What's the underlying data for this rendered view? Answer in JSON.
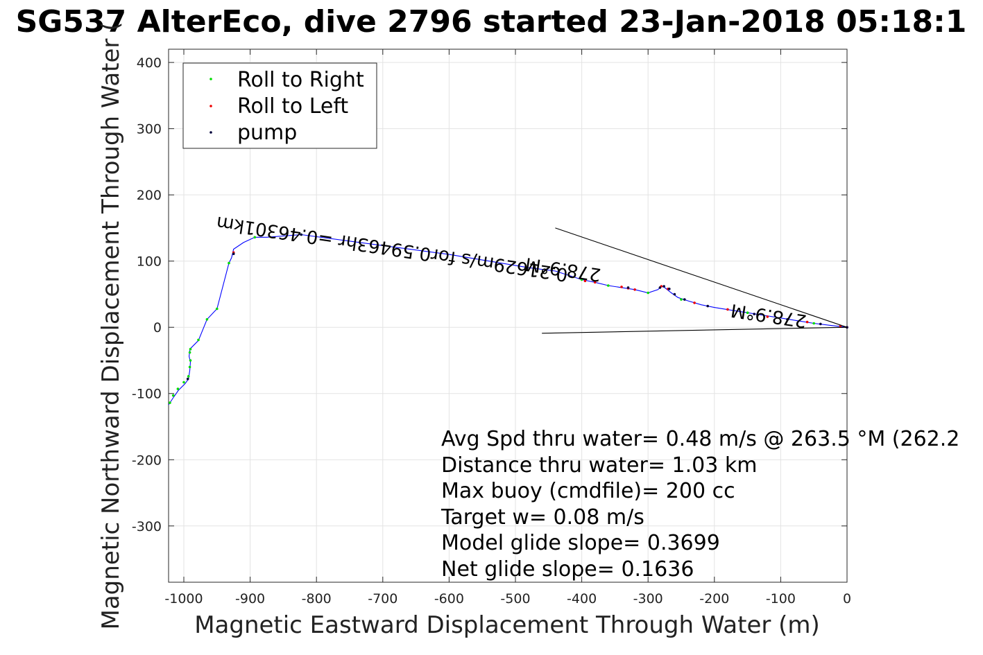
{
  "chart_data": {
    "type": "scatter",
    "title": "SG537 AlterEco, dive 2796 started 23-Jan-2018 05:18:1",
    "xlabel": "Magnetic Eastward Displacement Through Water (m)",
    "ylabel": "Magnetic Northward Displacement Through Water (",
    "xlim": [
      -1023,
      0
    ],
    "ylim": [
      -385,
      420
    ],
    "grid": true,
    "legend_position": "top-left",
    "x_ticks": [
      -1000,
      -900,
      -800,
      -700,
      -600,
      -500,
      -400,
      -300,
      -200,
      -100,
      0
    ],
    "y_ticks": [
      -300,
      -200,
      -100,
      0,
      100,
      200,
      300,
      400
    ],
    "series": [
      {
        "name": "track",
        "kind": "line",
        "color": "#0000ff",
        "x": [
          -1023,
          -1015,
          -1008,
          -998,
          -993,
          -991,
          -990,
          -992,
          -991,
          -990,
          -978,
          -965,
          -950,
          -932,
          -928,
          -925,
          -910,
          -893,
          -875,
          -823,
          -600,
          -480,
          -440,
          -400,
          -380,
          -360,
          -340,
          -320,
          -300,
          -285,
          -280,
          -275,
          -265,
          -255,
          -240,
          -220,
          -200,
          -175,
          -150,
          -125,
          -100,
          -75,
          -50,
          -25,
          0
        ],
        "y": [
          -117,
          -105,
          -95,
          -85,
          -78,
          -65,
          -52,
          -44,
          -35,
          -32,
          -20,
          12,
          28,
          97,
          105,
          118,
          128,
          136,
          136,
          140,
          110,
          90,
          85,
          72,
          68,
          63,
          60,
          57,
          52,
          57,
          62,
          60,
          52,
          45,
          40,
          34,
          30,
          26,
          22,
          18,
          14,
          10,
          6,
          3,
          0
        ]
      },
      {
        "name": "Roll to Right",
        "kind": "points",
        "color": "#00dd00",
        "x": [
          -1021,
          -1016,
          -1009,
          -1000,
          -993,
          -991,
          -990,
          -991,
          -990,
          -978,
          -965,
          -950,
          -932,
          -893,
          -823,
          -400,
          -360,
          -300,
          -250,
          -150,
          -50
        ],
        "y": [
          -114,
          -103,
          -93,
          -83,
          -74,
          -60,
          -50,
          -38,
          -33,
          -19,
          12,
          28,
          97,
          136,
          140,
          72,
          63,
          52,
          42,
          22,
          6
        ]
      },
      {
        "name": "Roll to Left",
        "kind": "points",
        "color": "#ee0000",
        "x": [
          -925,
          -395,
          -380,
          -340,
          -330,
          -320,
          -280,
          -270,
          -230,
          -180,
          -120,
          -60,
          -10,
          0
        ],
        "y": [
          113,
          70,
          68,
          61,
          59,
          57,
          62,
          58,
          37,
          27,
          16,
          8,
          2,
          0
        ]
      },
      {
        "name": "pump",
        "kind": "points",
        "color": "#00003a",
        "x": [
          -994,
          -925,
          -823,
          -330,
          -282,
          -276,
          -268,
          -260,
          -245,
          -210,
          -140,
          -90,
          -40,
          0
        ],
        "y": [
          -78,
          111,
          140,
          60,
          60,
          62,
          58,
          50,
          42,
          32,
          20,
          12,
          5,
          0
        ]
      },
      {
        "name": "current-line-1",
        "kind": "line",
        "color": "#000000",
        "x": [
          -440,
          0
        ],
        "y": [
          150,
          0
        ]
      },
      {
        "name": "current-line-2",
        "kind": "line",
        "color": "#000000",
        "x": [
          -460,
          0
        ],
        "y": [
          -9,
          0
        ]
      }
    ],
    "legend": [
      "Roll to Right",
      "Roll to Left",
      "pump"
    ],
    "annotations": [
      "Avg Spd thru water=  0.48 m/s @ 263.5 °M (262.2",
      "Distance thru water=  1.03 km",
      "Max buoy (cmdfile)= 200 cc",
      "Target w= 0.08 m/s",
      "Model glide slope= 0.3699",
      "Net glide slope= 0.1636"
    ],
    "rotated_annotations": [
      {
        "text": "0.21629m/s for0.59463hr =0.46301km",
        "x": -420,
        "y": 88,
        "angle": 188.5
      },
      {
        "text": "278.9°M",
        "x": -370,
        "y": 88,
        "angle": 188.5
      },
      {
        "text": "278.9°M",
        "x": -60,
        "y": 18,
        "angle": 188.5
      }
    ]
  }
}
